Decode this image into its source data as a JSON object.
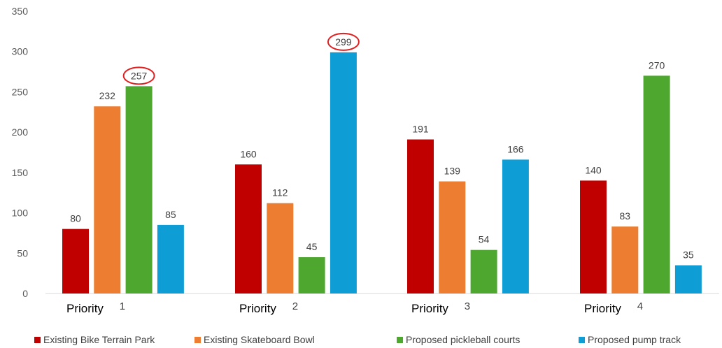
{
  "chart_data": {
    "type": "bar",
    "categories": [
      {
        "word": "Priority",
        "number": "1"
      },
      {
        "word": "Priority",
        "number": "2"
      },
      {
        "word": "Priority",
        "number": "3"
      },
      {
        "word": "Priority",
        "number": "4"
      }
    ],
    "series": [
      {
        "name": "Existing Bike Terrain Park",
        "color": "#c00000",
        "values": [
          80,
          160,
          191,
          140
        ]
      },
      {
        "name": "Existing Skateboard Bowl",
        "color": "#ed7d31",
        "values": [
          232,
          112,
          139,
          83
        ]
      },
      {
        "name": "Proposed pickleball courts",
        "color": "#4ea72e",
        "values": [
          257,
          45,
          54,
          270
        ]
      },
      {
        "name": "Proposed pump track",
        "color": "#0e9ed5",
        "values": [
          85,
          299,
          166,
          35
        ]
      }
    ],
    "ylim": [
      0,
      350
    ],
    "yticks": [
      0,
      50,
      100,
      150,
      200,
      250,
      300,
      350
    ],
    "grid": false,
    "legend_position": "bottom",
    "annotations": [
      {
        "type": "circle",
        "series": 2,
        "category": 0,
        "value": 257,
        "color": "#e02020"
      },
      {
        "type": "circle",
        "series": 3,
        "category": 1,
        "value": 299,
        "color": "#e02020"
      }
    ]
  }
}
